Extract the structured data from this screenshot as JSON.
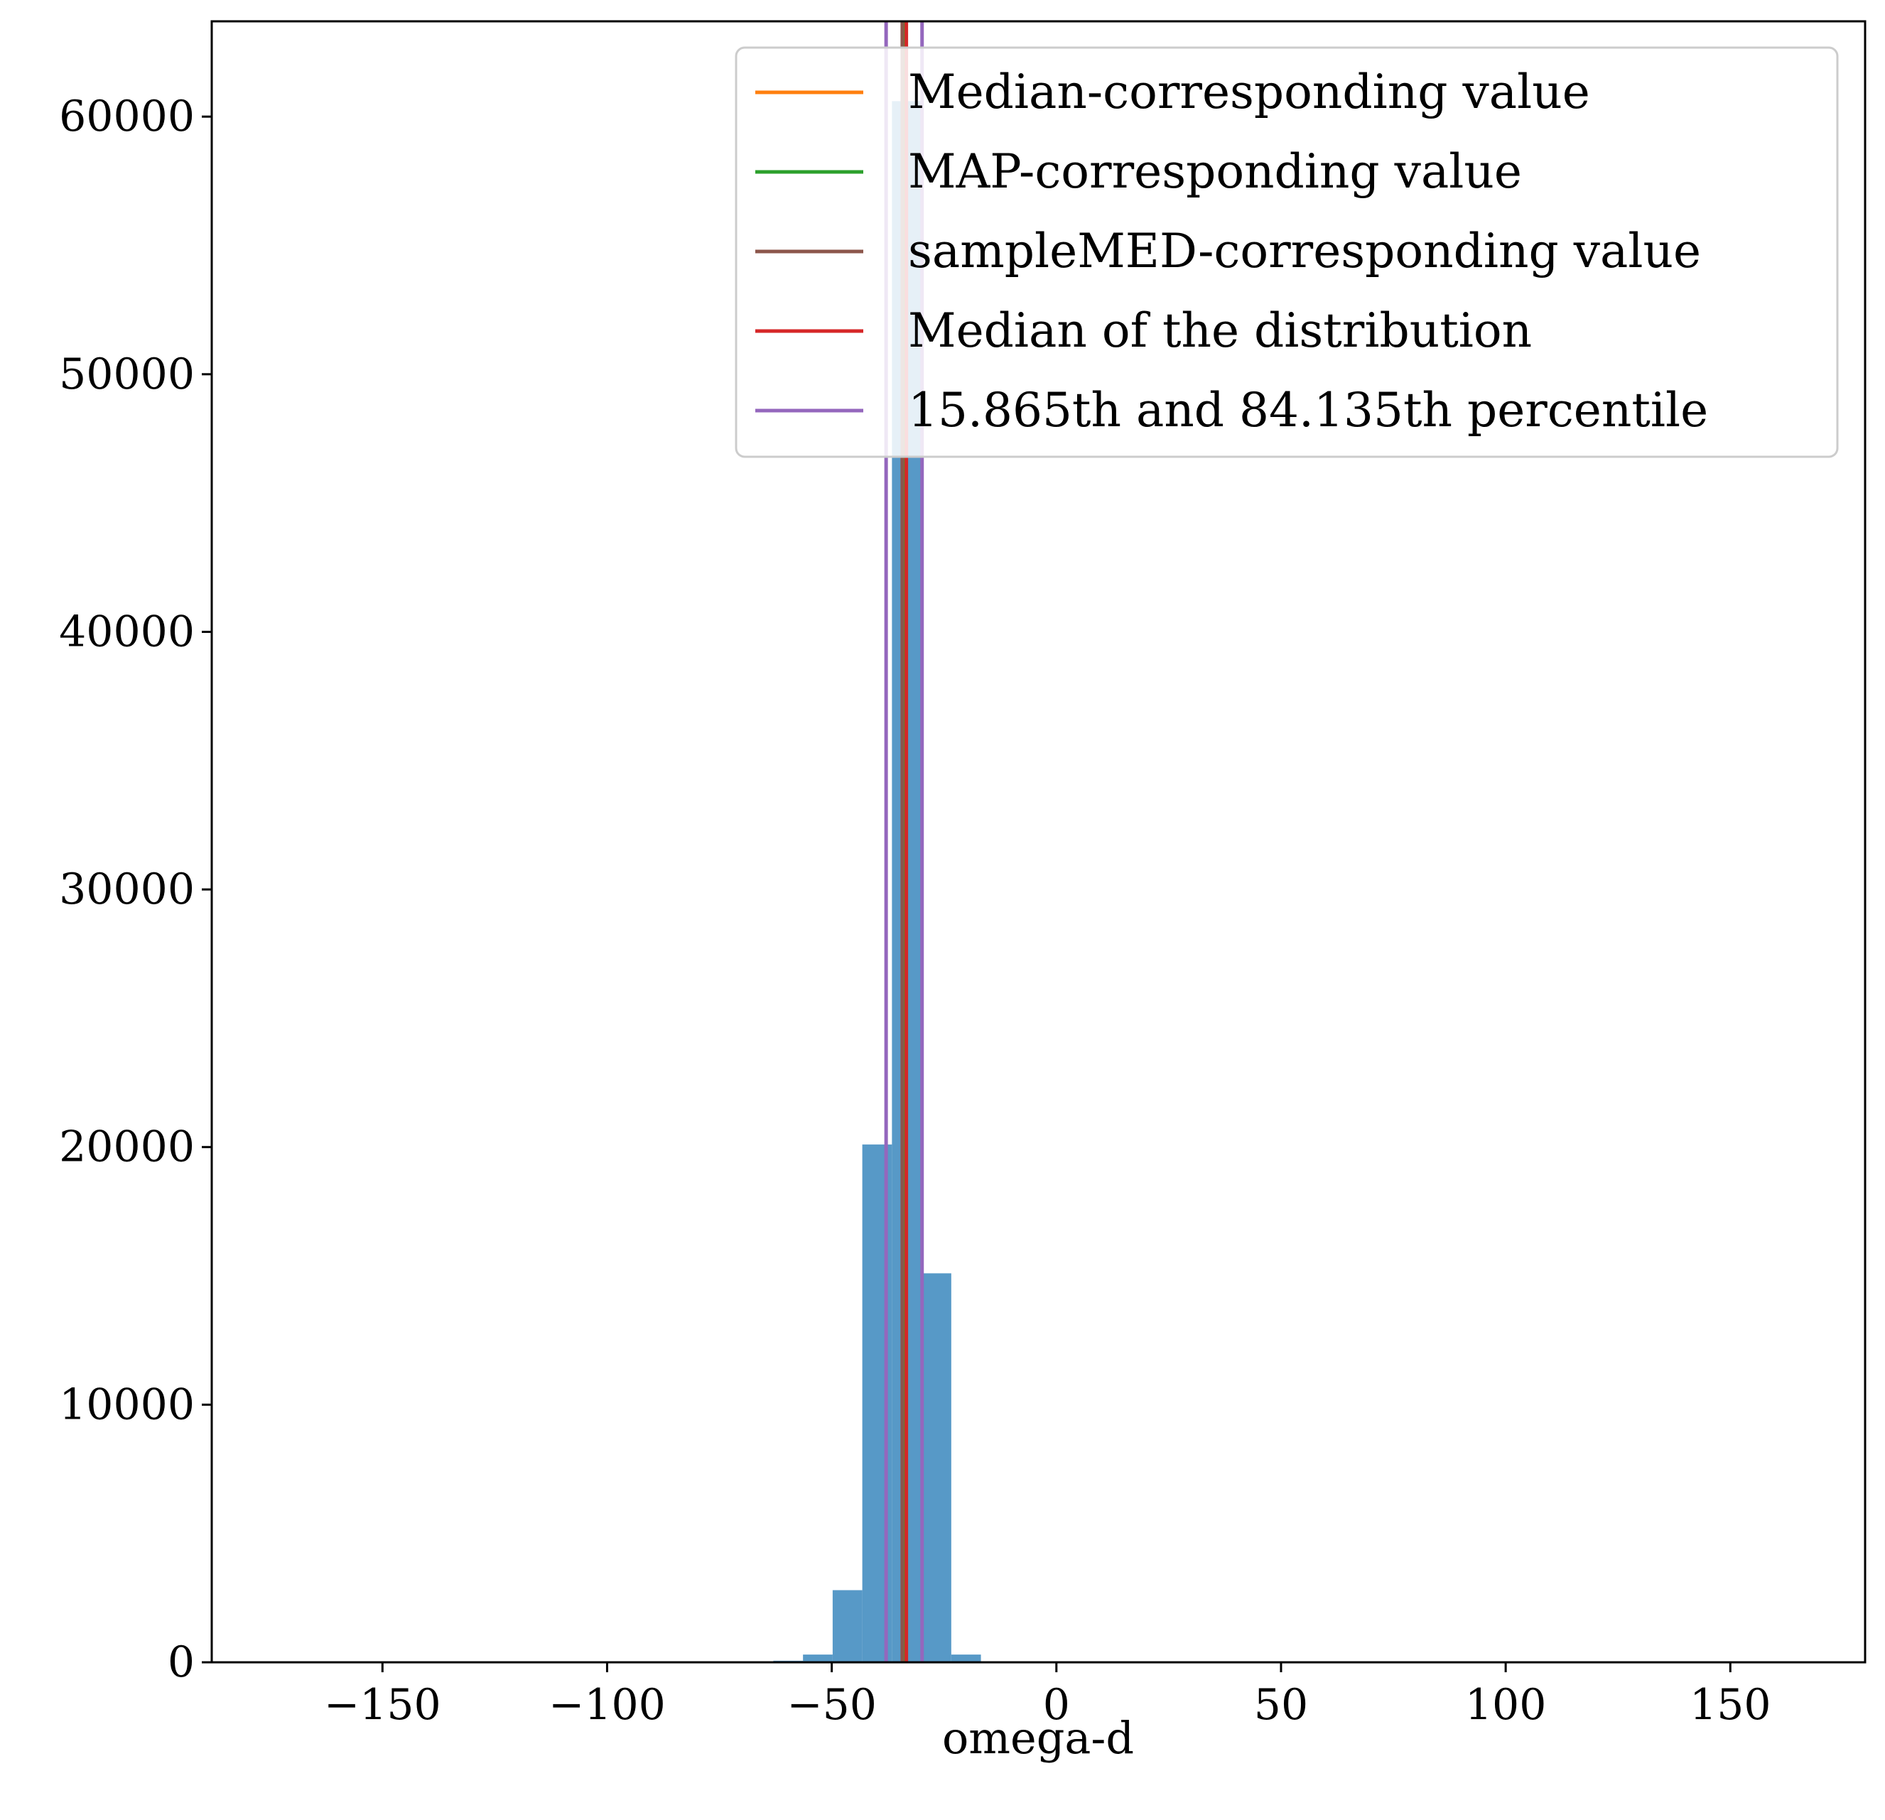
{
  "chart_data": {
    "type": "bar",
    "xlabel": "omega-d",
    "ylabel": "",
    "xlim": [
      -188,
      180
    ],
    "ylim": [
      0,
      63700
    ],
    "grid": false,
    "bar_color": "#5799c7",
    "xticks": [
      {
        "value": -150,
        "label": "−150"
      },
      {
        "value": -100,
        "label": "−100"
      },
      {
        "value": -50,
        "label": "−50"
      },
      {
        "value": 0,
        "label": "0"
      },
      {
        "value": 50,
        "label": "50"
      },
      {
        "value": 100,
        "label": "100"
      },
      {
        "value": 150,
        "label": "150"
      }
    ],
    "yticks": [
      {
        "value": 0,
        "label": "0"
      },
      {
        "value": 10000,
        "label": "10000"
      },
      {
        "value": 20000,
        "label": "20000"
      },
      {
        "value": 30000,
        "label": "30000"
      },
      {
        "value": 40000,
        "label": "40000"
      },
      {
        "value": 50000,
        "label": "50000"
      },
      {
        "value": 60000,
        "label": "60000"
      }
    ],
    "bins": [
      {
        "x0": -63.0,
        "x1": -56.4,
        "count": 60
      },
      {
        "x0": -56.4,
        "x1": -49.8,
        "count": 300
      },
      {
        "x0": -49.8,
        "x1": -43.2,
        "count": 2800
      },
      {
        "x0": -43.2,
        "x1": -36.6,
        "count": 20100
      },
      {
        "x0": -36.6,
        "x1": -30.0,
        "count": 60600
      },
      {
        "x0": -30.0,
        "x1": -23.4,
        "count": 15100
      },
      {
        "x0": -23.4,
        "x1": -16.8,
        "count": 300
      }
    ],
    "vlines": [
      {
        "x": -33.6,
        "color": "#ff7f0e"
      },
      {
        "x": -33.5,
        "color": "#2ca02c"
      },
      {
        "x": -34.3,
        "color": "#8c564b"
      },
      {
        "x": -33.4,
        "color": "#d62728"
      },
      {
        "x": -37.9,
        "color": "#9467bd"
      },
      {
        "x": -29.9,
        "color": "#9467bd"
      }
    ],
    "legend": {
      "position": "upper right",
      "entries": [
        {
          "label": "Median-corresponding value",
          "color": "#ff7f0e"
        },
        {
          "label": "MAP-corresponding value",
          "color": "#2ca02c"
        },
        {
          "label": "sampleMED-corresponding value",
          "color": "#8c564b"
        },
        {
          "label": "Median of the distribution",
          "color": "#d62728"
        },
        {
          "label": "15.865th and 84.135th percentile",
          "color": "#9467bd"
        }
      ]
    }
  }
}
